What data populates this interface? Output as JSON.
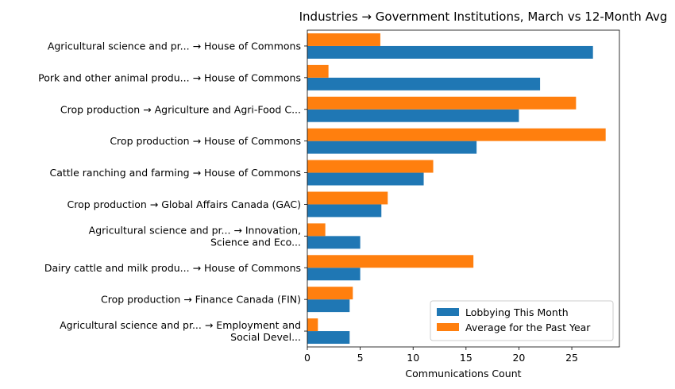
{
  "chart_data": {
    "type": "bar",
    "orientation": "horizontal",
    "title": "Industries → Government Institutions, March vs 12-Month Avg",
    "xlabel": "Communications Count",
    "ylabel": "",
    "xlim": [
      0,
      29.5
    ],
    "xticks": [
      0,
      5,
      10,
      15,
      20,
      25
    ],
    "grid": false,
    "legend_position": "lower-right",
    "categories": [
      [
        "Agricultural science and pr... → House of Commons"
      ],
      [
        "Pork and other animal produ... → House of Commons"
      ],
      [
        "Crop production → Agriculture and Agri-Food C..."
      ],
      [
        "Crop production → House of Commons"
      ],
      [
        "Cattle ranching and farming → House of Commons"
      ],
      [
        "Crop production → Global Affairs Canada (GAC)"
      ],
      [
        "Agricultural science and pr... → Innovation,",
        "Science and Eco..."
      ],
      [
        "Dairy cattle and milk produ... → House of Commons"
      ],
      [
        "Crop production → Finance Canada (FIN)"
      ],
      [
        "Agricultural science and pr... → Employment and",
        "Social Devel..."
      ]
    ],
    "series": [
      {
        "name": "Lobbying This Month",
        "color": "#1f77b4",
        "values": [
          27,
          22,
          20,
          16,
          11,
          7,
          5,
          5,
          4,
          4
        ]
      },
      {
        "name": "Average for the Past Year",
        "color": "#ff7f0e",
        "values": [
          6.9,
          2.0,
          25.4,
          28.2,
          11.9,
          7.6,
          1.7,
          15.7,
          4.3,
          1.0
        ]
      }
    ]
  }
}
